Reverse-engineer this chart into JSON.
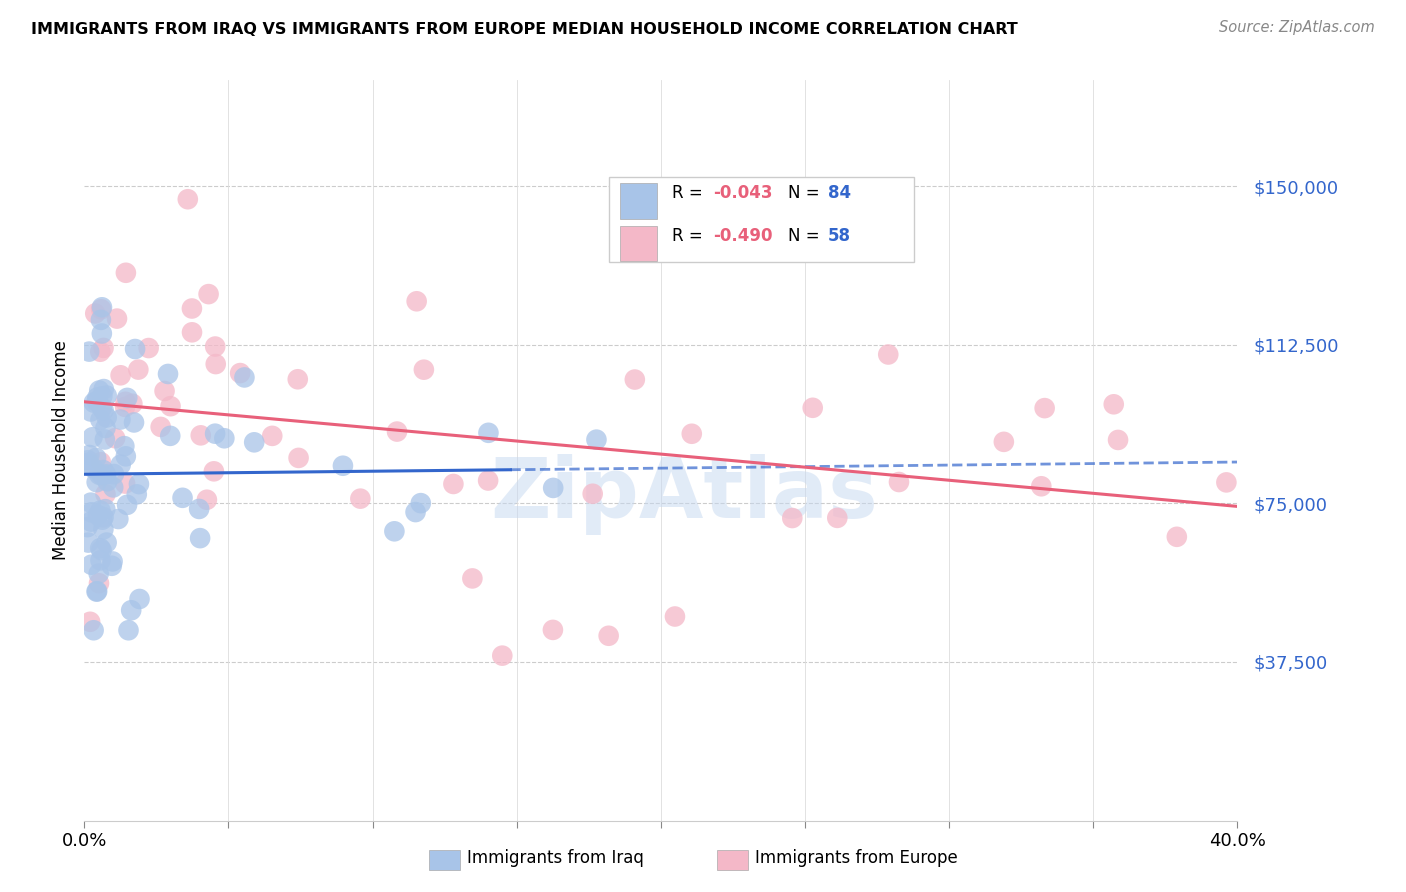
{
  "title": "IMMIGRANTS FROM IRAQ VS IMMIGRANTS FROM EUROPE MEDIAN HOUSEHOLD INCOME CORRELATION CHART",
  "source": "Source: ZipAtlas.com",
  "ylabel": "Median Household Income",
  "yticks": [
    37500,
    75000,
    112500,
    150000
  ],
  "ytick_labels": [
    "$37,500",
    "$75,000",
    "$112,500",
    "$150,000"
  ],
  "xlim": [
    0.0,
    0.4
  ],
  "ylim": [
    0,
    175000
  ],
  "iraq_R": -0.043,
  "iraq_N": 84,
  "europe_R": -0.49,
  "europe_N": 58,
  "iraq_color": "#a8c4e8",
  "europe_color": "#f4b8c8",
  "iraq_line_color": "#3366cc",
  "europe_line_color": "#e8607a",
  "watermark": "ZipAtlas",
  "legend_label_iraq": "Immigrants from Iraq",
  "legend_label_europe": "Immigrants from Europe",
  "legend_R_color": "#e8607a",
  "legend_N_color": "#3366cc",
  "iraq_line_intercept": 83000,
  "iraq_line_slope": -8000,
  "europe_line_intercept": 112000,
  "europe_line_slope": -120000,
  "iraq_line_end": 0.18,
  "europe_line_end": 0.4
}
